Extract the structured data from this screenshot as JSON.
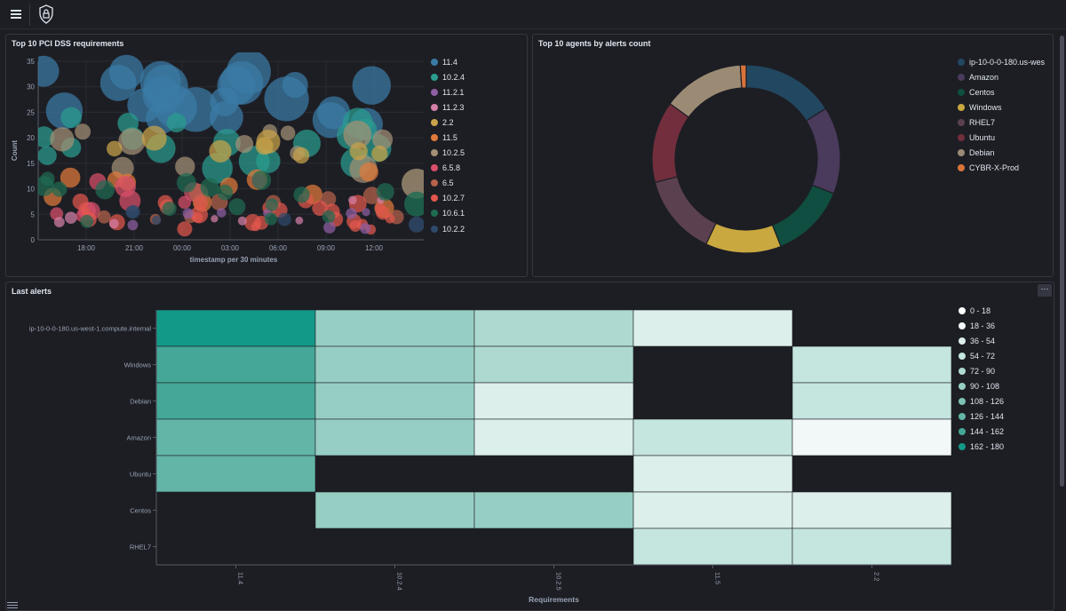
{
  "header": {
    "menu_icon": "hamburger-menu-icon",
    "logo_icon": "shield-lock-icon"
  },
  "panels": {
    "pci": {
      "title": "Top 10 PCI DSS requirements"
    },
    "agents": {
      "title": "Top 10 agents by alerts count"
    },
    "alerts": {
      "title": "Last alerts"
    }
  },
  "chart_data": [
    {
      "type": "scatter",
      "title": "Top 10 PCI DSS requirements",
      "xlabel": "timestamp per 30 minutes",
      "ylabel": "Count",
      "ylim": [
        0,
        35
      ],
      "yticks": [
        "0",
        "5",
        "10",
        "15",
        "20",
        "25",
        "30",
        "35"
      ],
      "xticks": [
        "18:00",
        "21:00",
        "00:00",
        "03:00",
        "06:00",
        "09:00",
        "12:00"
      ],
      "grid": true,
      "legend_position": "right",
      "series": [
        {
          "name": "11.4",
          "color": "#3a7ba6"
        },
        {
          "name": "10.2.4",
          "color": "#2a9d8f"
        },
        {
          "name": "11.2.1",
          "color": "#8e5ea2"
        },
        {
          "name": "11.2.3",
          "color": "#d47fa6"
        },
        {
          "name": "2.2",
          "color": "#c9a34a"
        },
        {
          "name": "11.5",
          "color": "#e07a3a"
        },
        {
          "name": "10.2.5",
          "color": "#a39074"
        },
        {
          "name": "6.5.8",
          "color": "#d94f6a"
        },
        {
          "name": "6.5",
          "color": "#b5634b"
        },
        {
          "name": "10.2.7",
          "color": "#e2574c"
        },
        {
          "name": "10.6.1",
          "color": "#1e6b52"
        },
        {
          "name": "10.2.2",
          "color": "#2f4a6b"
        }
      ]
    },
    {
      "type": "pie",
      "title": "Top 10 agents by alerts count",
      "donut": true,
      "legend_position": "right",
      "series": [
        {
          "name": "ip-10-0-0-180.us-wes",
          "value": 16,
          "color": "#224760"
        },
        {
          "name": "Amazon",
          "value": 15,
          "color": "#4a3a5c"
        },
        {
          "name": "Centos",
          "value": 13,
          "color": "#0f4e40"
        },
        {
          "name": "Windows",
          "value": 13,
          "color": "#c9a840"
        },
        {
          "name": "RHEL7",
          "value": 14,
          "color": "#5b4150"
        },
        {
          "name": "Ubuntu",
          "value": 14,
          "color": "#722e3c"
        },
        {
          "name": "Debian",
          "value": 14,
          "color": "#9c8b74"
        },
        {
          "name": "CYBR-X-Prod",
          "value": 1,
          "color": "#d8743a"
        }
      ]
    },
    {
      "type": "heatmap",
      "title": "Last alerts",
      "xlabel": "Requirements",
      "x": [
        "11.4",
        "10.2.4",
        "10.2.5",
        "11.5",
        "2.2"
      ],
      "y": [
        "ip-10-0-0-180.us-west-1.compute.internal",
        "Windows",
        "Debian",
        "Amazon",
        "Ubuntu",
        "Centos",
        "RHEL7"
      ],
      "values": [
        [
          175,
          95,
          75,
          45,
          null
        ],
        [
          155,
          90,
          80,
          null,
          60
        ],
        [
          150,
          95,
          40,
          null,
          55
        ],
        [
          135,
          90,
          45,
          55,
          30
        ],
        [
          140,
          null,
          null,
          50,
          null
        ],
        [
          null,
          105,
          95,
          50,
          50
        ],
        [
          null,
          null,
          null,
          55,
          55
        ]
      ],
      "legend_position": "right",
      "legend": [
        "0 - 18",
        "18 - 36",
        "36 - 54",
        "54 - 72",
        "72 - 90",
        "90 - 108",
        "108 - 126",
        "126 - 144",
        "144 - 162",
        "162 - 180"
      ],
      "legend_colors": [
        "#ffffff",
        "#f2f8f7",
        "#dcefeb",
        "#c5e5df",
        "#aed9d1",
        "#97cec4",
        "#7ec2b6",
        "#62b5a7",
        "#44a797",
        "#139988"
      ]
    }
  ]
}
